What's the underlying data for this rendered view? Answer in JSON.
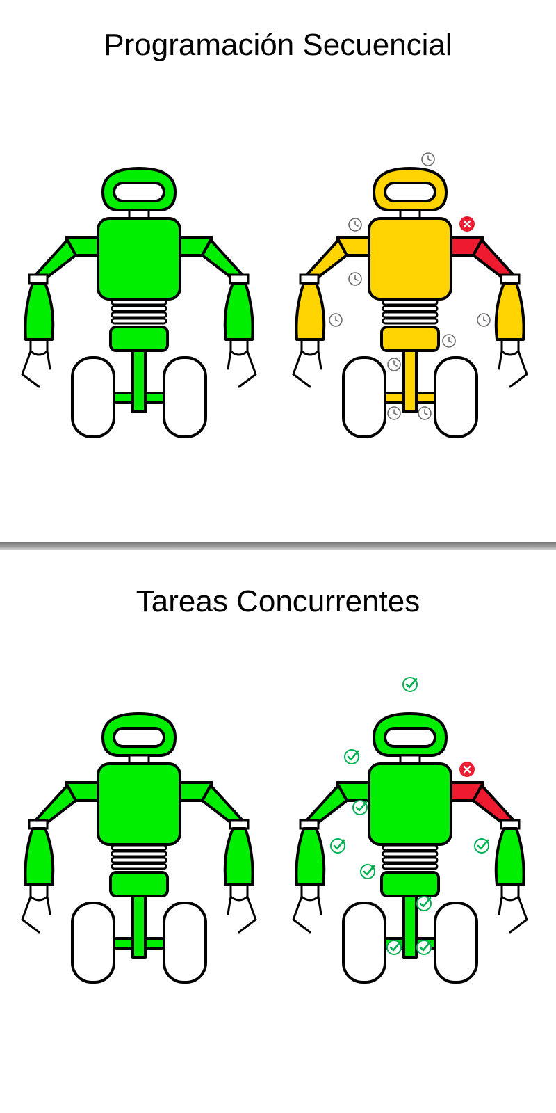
{
  "colors": {
    "ok_green": "#00ee00",
    "waiting_yellow": "#ffd400",
    "fault_red": "#ee1b30",
    "check_green": "#00b050",
    "clock_gray": "#6d6d6d",
    "outline": "#000000"
  },
  "panels": [
    {
      "title": "Programación Secuencial",
      "robots": [
        {
          "state": "ok",
          "body_color": "#00ee00",
          "markers": "none"
        },
        {
          "state": "waiting",
          "body_color": "#ffd400",
          "fault_part": "right-upper-arm",
          "marker_icon": "clock-icon",
          "fault_icon": "error-x-icon"
        }
      ]
    },
    {
      "title": "Tareas Concurrentes",
      "robots": [
        {
          "state": "ok",
          "body_color": "#00ee00",
          "markers": "none"
        },
        {
          "state": "running",
          "body_color": "#00ee00",
          "fault_part": "right-upper-arm",
          "marker_icon": "check-icon",
          "fault_icon": "error-x-icon"
        }
      ]
    }
  ]
}
